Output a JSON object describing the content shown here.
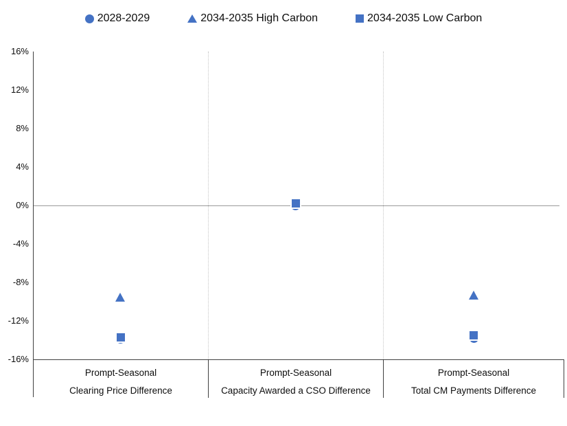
{
  "colors": {
    "marker_blue": "#4472C4",
    "axis_dark": "#3f3f3f",
    "zero_line_gray": "#9a9a9a",
    "divider_light_gray": "#c4c4c4"
  },
  "chart_data": {
    "type": "scatter",
    "title": "",
    "legend_position": "top",
    "grid": "zero-line-only",
    "ylabel": "",
    "ylim": [
      -16,
      16
    ],
    "ytick_step": 4,
    "yticks": [
      "16%",
      "12%",
      "8%",
      "4%",
      "0%",
      "-4%",
      "-8%",
      "-12%",
      "-16%"
    ],
    "categories": [
      {
        "line1": "Prompt-Seasonal",
        "line2": "Clearing Price Difference"
      },
      {
        "line1": "Prompt-Seasonal",
        "line2": "Capacity Awarded a CSO Difference"
      },
      {
        "line1": "Prompt-Seasonal",
        "line2": "Total CM Payments Difference"
      }
    ],
    "series": [
      {
        "name": "2028-2029",
        "marker": "circle",
        "values": [
          -13.9,
          0.0,
          -13.8
        ]
      },
      {
        "name": "2034-2035 High Carbon",
        "marker": "triangle",
        "values": [
          -9.5,
          0.2,
          -9.3
        ]
      },
      {
        "name": "2034-2035 Low Carbon",
        "marker": "square",
        "values": [
          -13.7,
          0.2,
          -13.5
        ]
      }
    ]
  }
}
